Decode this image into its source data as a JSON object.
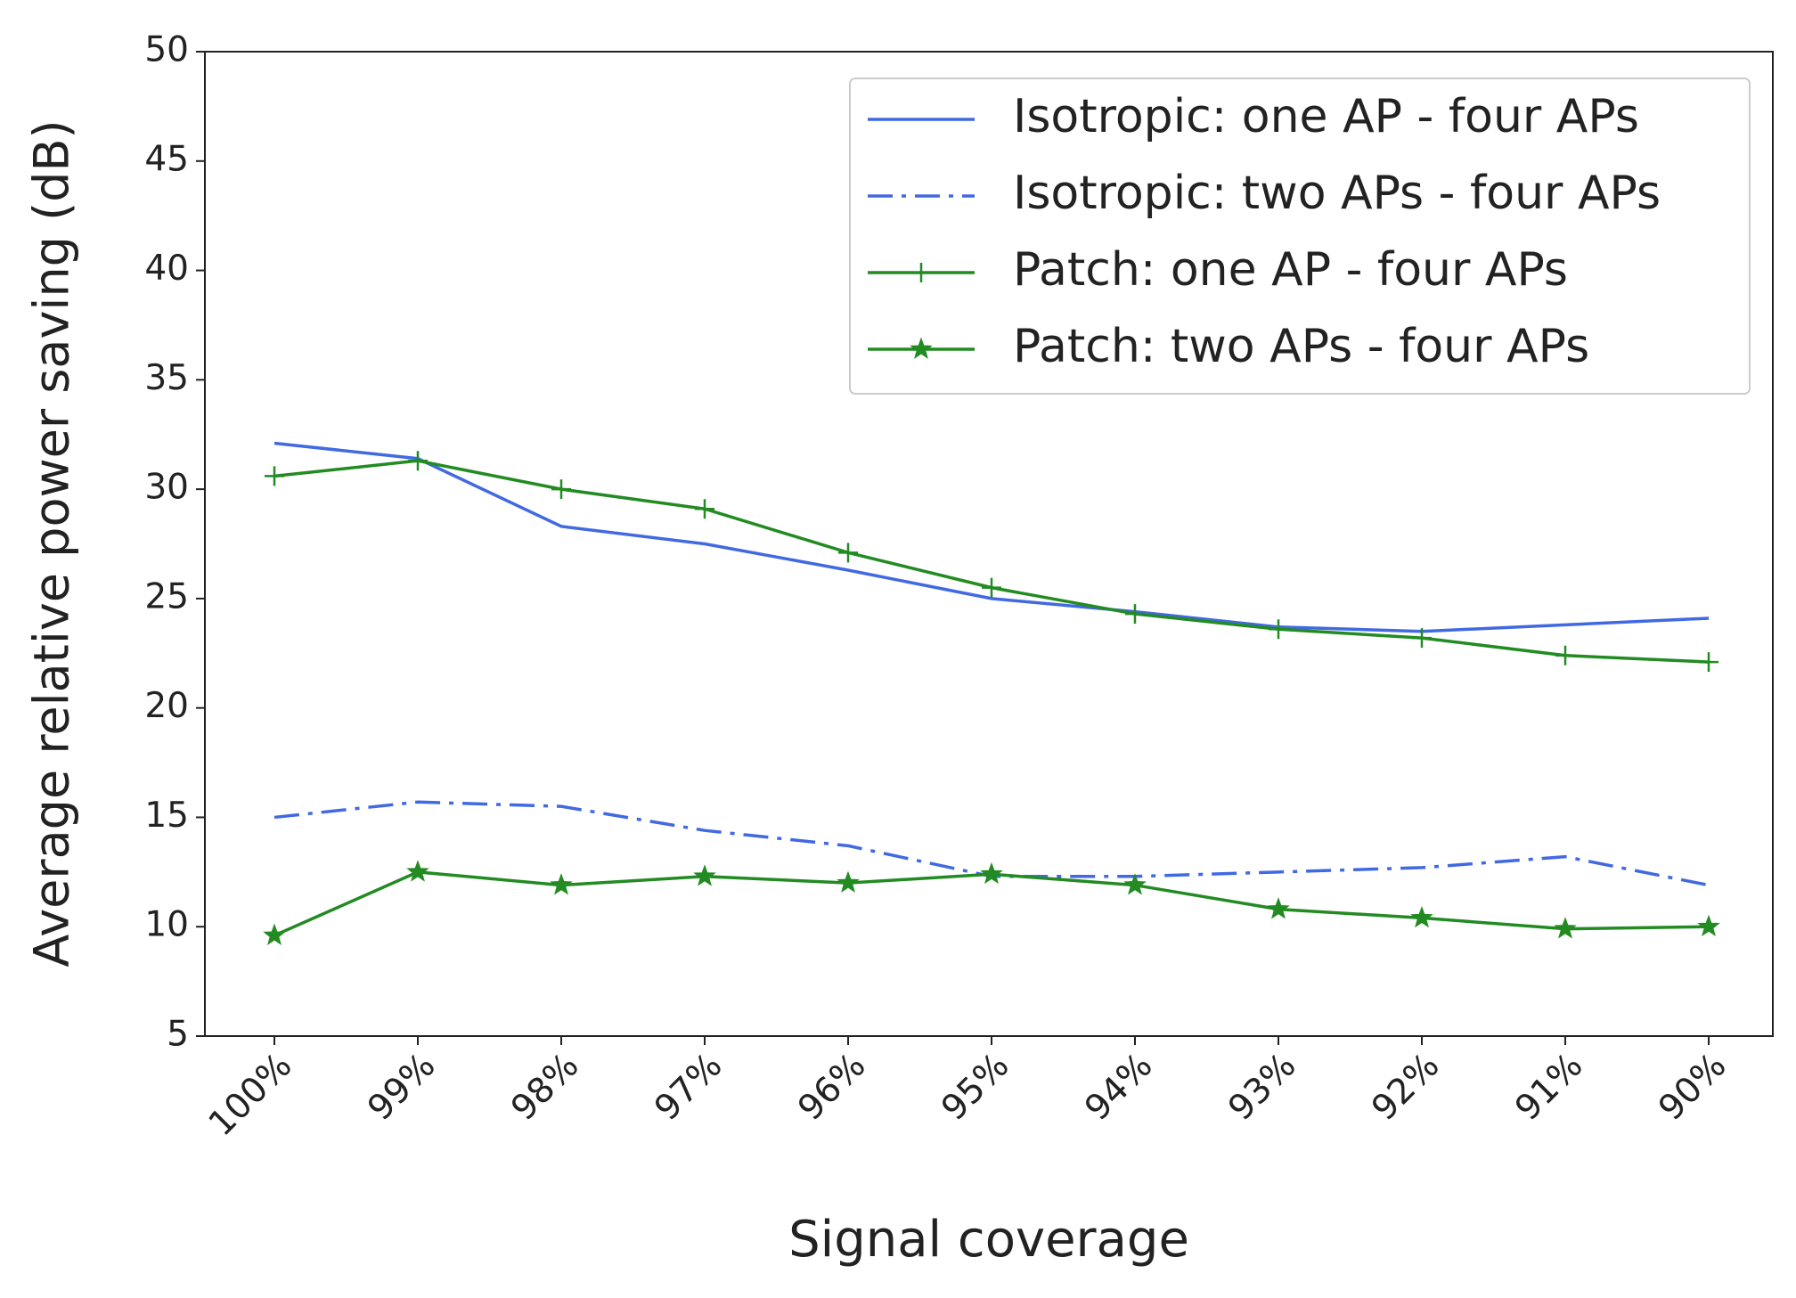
{
  "chart_data": {
    "type": "line",
    "xlabel": "Signal coverage",
    "ylabel": "Average relative power saving (dB)",
    "categories": [
      "100%",
      "99%",
      "98%",
      "97%",
      "96%",
      "95%",
      "94%",
      "93%",
      "92%",
      "91%",
      "90%"
    ],
    "series": [
      {
        "name": "Isotropic: one AP - four APs",
        "color": "#4169e1",
        "linestyle": "solid",
        "marker": "none",
        "values": [
          32.1,
          31.4,
          28.3,
          27.5,
          26.3,
          25.0,
          24.4,
          23.7,
          23.5,
          23.8,
          24.1
        ]
      },
      {
        "name": "Isotropic: two APs - four APs",
        "color": "#4169e1",
        "linestyle": "dashdot",
        "marker": "none",
        "values": [
          15.0,
          15.7,
          15.5,
          14.4,
          13.7,
          12.3,
          12.3,
          12.5,
          12.7,
          13.2,
          11.9
        ]
      },
      {
        "name": "Patch: one AP - four APs",
        "color": "#228b22",
        "linestyle": "solid",
        "marker": "plus",
        "values": [
          30.6,
          31.3,
          30.0,
          29.1,
          27.1,
          25.5,
          24.3,
          23.6,
          23.2,
          22.4,
          22.1
        ]
      },
      {
        "name": "Patch: two APs - four APs",
        "color": "#228b22",
        "linestyle": "solid",
        "marker": "star",
        "values": [
          9.6,
          12.5,
          11.9,
          12.3,
          12.0,
          12.4,
          11.9,
          10.8,
          10.4,
          9.9,
          10.0
        ]
      }
    ],
    "ylim": [
      5,
      50
    ],
    "yticks": [
      5,
      10,
      15,
      20,
      25,
      30,
      35,
      40,
      45,
      50
    ],
    "legend": "upper right"
  }
}
